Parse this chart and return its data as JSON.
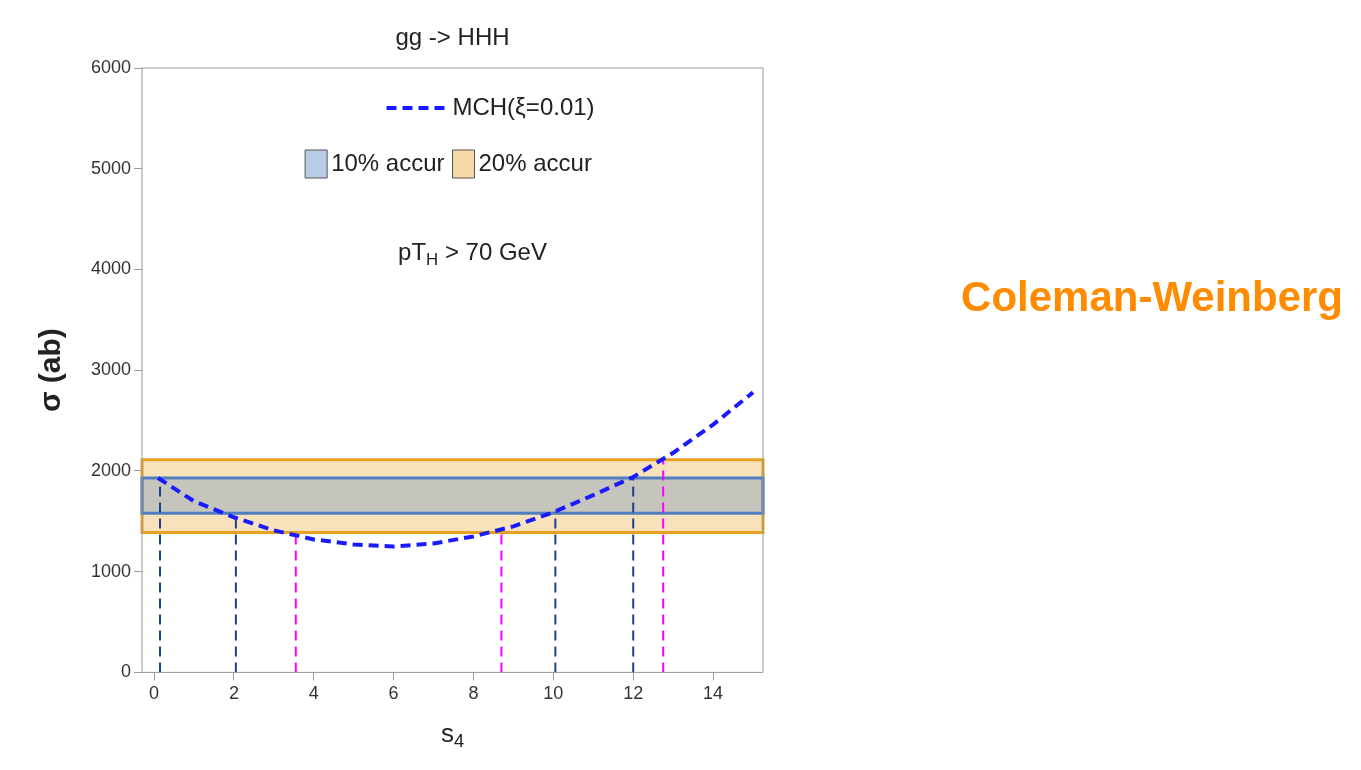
{
  "chart_data": {
    "type": "line",
    "title": "gg -> HHH",
    "xlabel": "s$_{4}$",
    "ylabel": "σ (ab)",
    "xlim": [
      -0.3,
      15.25
    ],
    "xticks": [
      0,
      2,
      4,
      6,
      8,
      10,
      12,
      14
    ],
    "ylim": [
      0,
      6000
    ],
    "yticks": [
      0,
      1000,
      2000,
      3000,
      4000,
      5000,
      6000
    ],
    "grid": false,
    "legend": "top",
    "marker": "none",
    "line_style": "dashed",
    "x": [
      0.1,
      1,
      2,
      3,
      4,
      5,
      6,
      7,
      8,
      9,
      10,
      11,
      12,
      13,
      14,
      15
    ],
    "series": [
      {
        "name": "MCH(ξ=0.01)",
        "color": "#1a1aff",
        "values": [
          1930,
          1700,
          1540,
          1410,
          1320,
          1270,
          1250,
          1280,
          1350,
          1450,
          1590,
          1760,
          1940,
          2180,
          2460,
          2780
        ]
      }
    ],
    "bands": [
      {
        "axis": "y",
        "from": 1390,
        "to": 2110,
        "label": "20% accur",
        "color": "#e8a020"
      },
      {
        "axis": "y",
        "from": 1580,
        "to": 1930,
        "label": "10% accur",
        "color": "#4f7fbf"
      }
    ],
    "ref_lines": [
      {
        "axis": "x",
        "value": 0.15,
        "color": "#1f3f8f",
        "line_style": "dashed"
      },
      {
        "axis": "x",
        "value": 2.05,
        "color": "#1f3f8f",
        "line_style": "dashed"
      },
      {
        "axis": "x",
        "value": 3.55,
        "color": "#ff00ff",
        "line_style": "dashed"
      },
      {
        "axis": "x",
        "value": 8.7,
        "color": "#ff00ff",
        "line_style": "dashed"
      },
      {
        "axis": "x",
        "value": 10.05,
        "color": "#1f3f8f",
        "line_style": "dashed"
      },
      {
        "axis": "x",
        "value": 12.0,
        "color": "#1f3f8f",
        "line_style": "dashed"
      },
      {
        "axis": "x",
        "value": 12.75,
        "color": "#ff00ff",
        "line_style": "dashed"
      }
    ],
    "annotations": [
      "pT$_{H}$ > 70 GeV",
      "Coleman-Weinberg"
    ]
  }
}
